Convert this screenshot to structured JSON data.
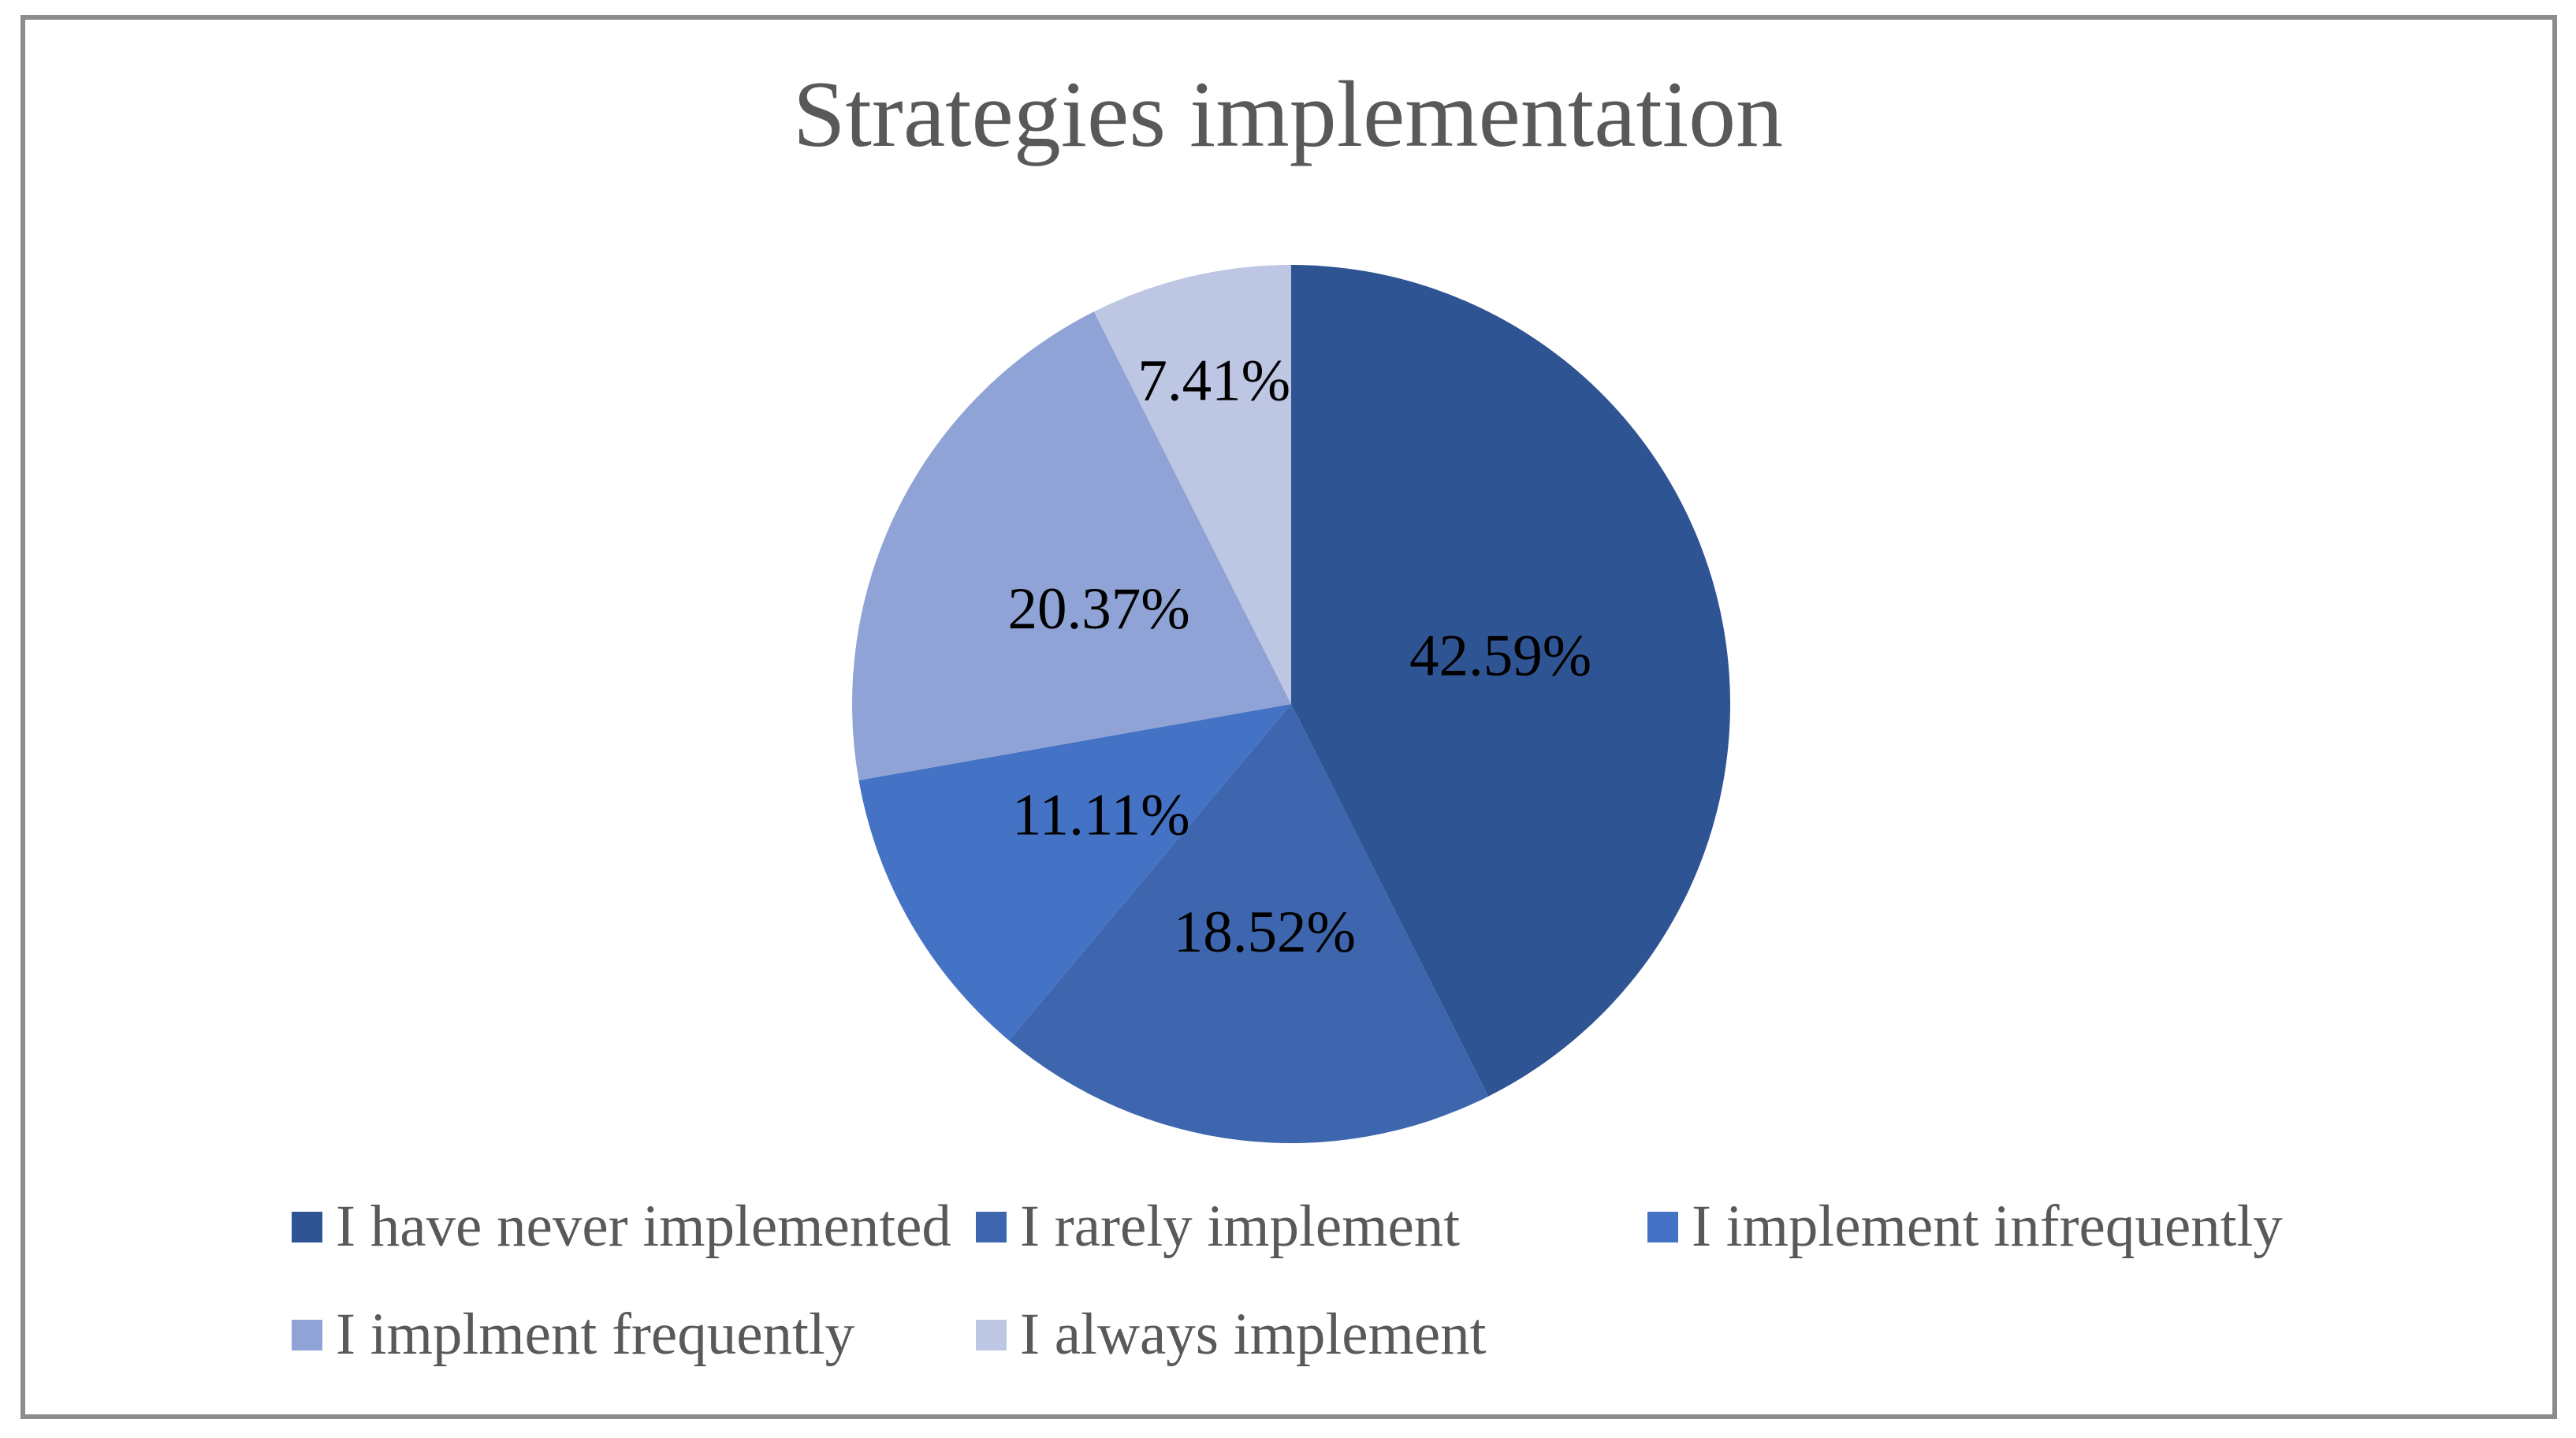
{
  "title": "Strategies implementation",
  "chart_data": {
    "type": "pie",
    "title": "Strategies implementation",
    "start_angle_deg": 0,
    "direction": "clockwise",
    "slices": [
      {
        "label": "I have never implemented",
        "value": 42.59,
        "display": "42.59%",
        "color": "#2F5493",
        "label_radius_frac": 0.49
      },
      {
        "label": "I rarely implement",
        "value": 18.52,
        "display": "18.52%",
        "color": "#3D66AE",
        "label_radius_frac": 0.52
      },
      {
        "label": "I implement infrequently",
        "value": 11.11,
        "display": "11.11%",
        "color": "#4472C4",
        "label_radius_frac": 0.5
      },
      {
        "label": "I implment frequently",
        "value": 20.37,
        "display": "20.37%",
        "color": "#90A3D6",
        "label_radius_frac": 0.49
      },
      {
        "label": "I always implement",
        "value": 7.41,
        "display": "7.41%",
        "color": "#BDC7E4",
        "label_radius_frac": 0.76
      }
    ],
    "legend_position": "bottom",
    "legend_rows": [
      [
        0,
        1,
        2
      ],
      [
        3,
        4
      ]
    ],
    "grid": false
  },
  "colors": {
    "title_text": "#595959",
    "legend_text": "#595959",
    "data_label": "#000000",
    "border": "#8C8C8C",
    "background": "#FFFFFF"
  }
}
